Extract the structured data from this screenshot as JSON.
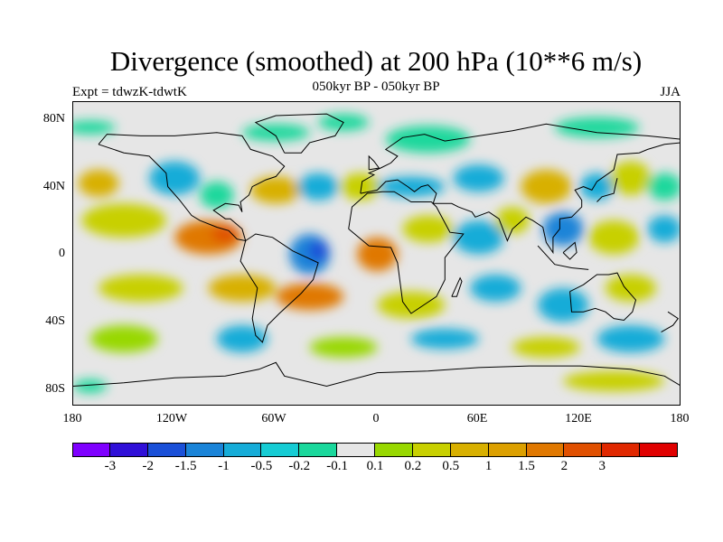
{
  "title": "Divergence (smoothed) at 200 hPa (10**6 m/s)",
  "subtitle_center": "050kyr BP - 050kyr BP",
  "subtitle_left": "Expt = tdwzK-tdwtK",
  "subtitle_right": "JJA",
  "lat_labels": [
    "80N",
    "40N",
    "0",
    "40S",
    "80S"
  ],
  "lon_labels": [
    "180",
    "120W",
    "60W",
    "0",
    "60E",
    "120E",
    "180"
  ],
  "colorbar": {
    "colors": [
      "#7f00ff",
      "#3010d8",
      "#1a50d8",
      "#1a84d8",
      "#16acd8",
      "#16ccd4",
      "#1ad89c",
      "#e6e6e6",
      "#98d800",
      "#c8d000",
      "#d8b000",
      "#dca000",
      "#e07800",
      "#e05000",
      "#e02800",
      "#e00000"
    ],
    "labels": [
      "-3",
      "-2",
      "-1.5",
      "-1",
      "-0.5",
      "-0.2",
      "-0.1",
      "0.1",
      "0.2",
      "0.5",
      "1",
      "1.5",
      "2",
      "3"
    ]
  },
  "map_data": {
    "background_color": "#e6e6e6",
    "blobs": [
      {
        "lon": -170,
        "lat": 75,
        "rx": 15,
        "ry": 4,
        "color": "#1ad89c"
      },
      {
        "lon": -60,
        "lat": 72,
        "rx": 20,
        "ry": 5,
        "color": "#1ad89c"
      },
      {
        "lon": -20,
        "lat": 78,
        "rx": 15,
        "ry": 5,
        "color": "#1ad89c"
      },
      {
        "lon": 30,
        "lat": 68,
        "rx": 25,
        "ry": 8,
        "color": "#1ad89c"
      },
      {
        "lon": 130,
        "lat": 75,
        "rx": 25,
        "ry": 6,
        "color": "#1ad89c"
      },
      {
        "lon": -165,
        "lat": 42,
        "rx": 12,
        "ry": 8,
        "color": "#d8b000"
      },
      {
        "lon": -120,
        "lat": 45,
        "rx": 15,
        "ry": 10,
        "color": "#16acd8"
      },
      {
        "lon": -95,
        "lat": 35,
        "rx": 10,
        "ry": 8,
        "color": "#1ad89c"
      },
      {
        "lon": -60,
        "lat": 38,
        "rx": 15,
        "ry": 8,
        "color": "#d8b000"
      },
      {
        "lon": -35,
        "lat": 40,
        "rx": 12,
        "ry": 8,
        "color": "#16acd8"
      },
      {
        "lon": -10,
        "lat": 40,
        "rx": 12,
        "ry": 8,
        "color": "#c8d000"
      },
      {
        "lon": 20,
        "lat": 40,
        "rx": 20,
        "ry": 6,
        "color": "#16acd8"
      },
      {
        "lon": 60,
        "lat": 45,
        "rx": 15,
        "ry": 8,
        "color": "#16acd8"
      },
      {
        "lon": 100,
        "lat": 40,
        "rx": 15,
        "ry": 10,
        "color": "#d8b000"
      },
      {
        "lon": 130,
        "lat": 40,
        "rx": 10,
        "ry": 8,
        "color": "#16acd8"
      },
      {
        "lon": 150,
        "lat": 45,
        "rx": 12,
        "ry": 10,
        "color": "#c8d000"
      },
      {
        "lon": 170,
        "lat": 40,
        "rx": 10,
        "ry": 8,
        "color": "#1ad89c"
      },
      {
        "lon": -150,
        "lat": 20,
        "rx": 25,
        "ry": 10,
        "color": "#c8d000"
      },
      {
        "lon": -100,
        "lat": 10,
        "rx": 20,
        "ry": 10,
        "color": "#e07800"
      },
      {
        "lon": -90,
        "lat": 12,
        "rx": 8,
        "ry": 5,
        "color": "#e05000"
      },
      {
        "lon": -40,
        "lat": 0,
        "rx": 12,
        "ry": 12,
        "color": "#1a84d8"
      },
      {
        "lon": -35,
        "lat": 2,
        "rx": 6,
        "ry": 6,
        "color": "#1a50d8"
      },
      {
        "lon": 0,
        "lat": 0,
        "rx": 12,
        "ry": 10,
        "color": "#e07800"
      },
      {
        "lon": 30,
        "lat": 15,
        "rx": 15,
        "ry": 8,
        "color": "#c8d000"
      },
      {
        "lon": 60,
        "lat": 10,
        "rx": 15,
        "ry": 10,
        "color": "#16acd8"
      },
      {
        "lon": 80,
        "lat": 20,
        "rx": 10,
        "ry": 8,
        "color": "#c8d000"
      },
      {
        "lon": 110,
        "lat": 15,
        "rx": 12,
        "ry": 10,
        "color": "#1a84d8"
      },
      {
        "lon": 140,
        "lat": 10,
        "rx": 15,
        "ry": 10,
        "color": "#c8d000"
      },
      {
        "lon": 170,
        "lat": 15,
        "rx": 10,
        "ry": 8,
        "color": "#16acd8"
      },
      {
        "lon": -140,
        "lat": -20,
        "rx": 25,
        "ry": 8,
        "color": "#c8d000"
      },
      {
        "lon": -80,
        "lat": -20,
        "rx": 20,
        "ry": 8,
        "color": "#d8b000"
      },
      {
        "lon": -40,
        "lat": -25,
        "rx": 20,
        "ry": 8,
        "color": "#e07800"
      },
      {
        "lon": 20,
        "lat": -30,
        "rx": 20,
        "ry": 8,
        "color": "#c8d000"
      },
      {
        "lon": 70,
        "lat": -20,
        "rx": 15,
        "ry": 8,
        "color": "#16acd8"
      },
      {
        "lon": 110,
        "lat": -30,
        "rx": 15,
        "ry": 10,
        "color": "#16acd8"
      },
      {
        "lon": 150,
        "lat": -20,
        "rx": 15,
        "ry": 8,
        "color": "#c8d000"
      },
      {
        "lon": -150,
        "lat": -50,
        "rx": 20,
        "ry": 8,
        "color": "#98d800"
      },
      {
        "lon": -80,
        "lat": -50,
        "rx": 15,
        "ry": 8,
        "color": "#16acd8"
      },
      {
        "lon": -20,
        "lat": -55,
        "rx": 20,
        "ry": 6,
        "color": "#98d800"
      },
      {
        "lon": 40,
        "lat": -50,
        "rx": 20,
        "ry": 6,
        "color": "#16acd8"
      },
      {
        "lon": 100,
        "lat": -55,
        "rx": 20,
        "ry": 6,
        "color": "#c8d000"
      },
      {
        "lon": 150,
        "lat": -50,
        "rx": 20,
        "ry": 8,
        "color": "#16acd8"
      },
      {
        "lon": -170,
        "lat": -78,
        "rx": 10,
        "ry": 4,
        "color": "#1ad89c"
      },
      {
        "lon": 140,
        "lat": -75,
        "rx": 30,
        "ry": 6,
        "color": "#c8d000"
      }
    ]
  }
}
